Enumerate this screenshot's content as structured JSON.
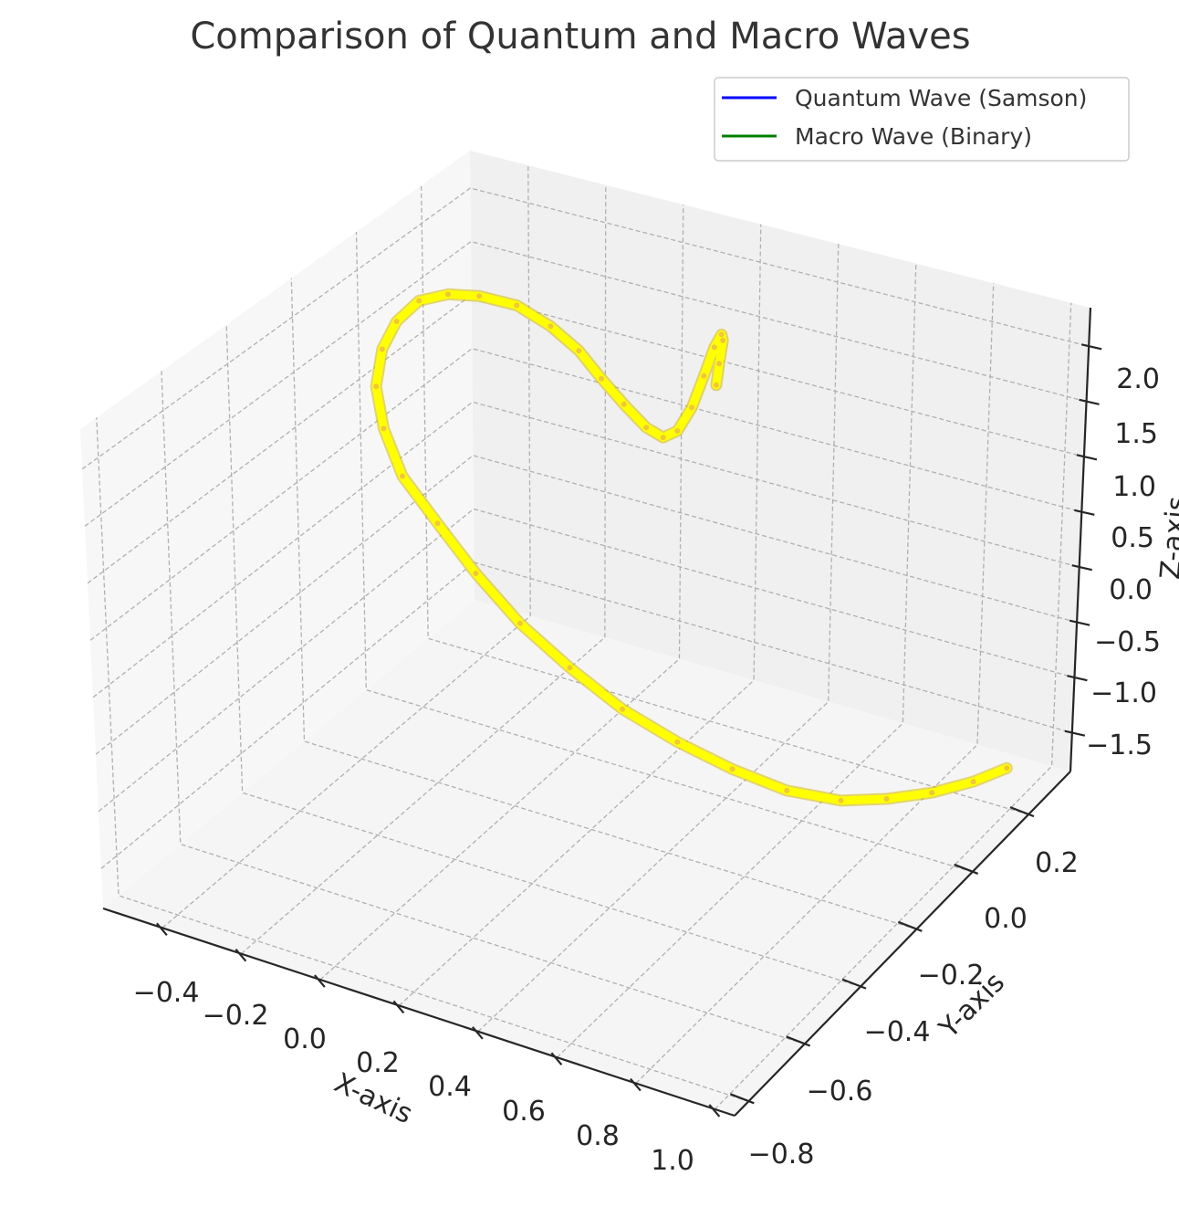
{
  "chart_data": {
    "type": "line",
    "projection": "3d",
    "title": "Comparison of Quantum and Macro Waves",
    "xlabel": "X-axis",
    "ylabel": "Y-axis",
    "zlabel": "Z-axis",
    "xlim": [
      -0.55,
      1.05
    ],
    "ylim": [
      -0.85,
      0.35
    ],
    "zlim": [
      -1.85,
      2.35
    ],
    "x_ticks": [
      "−0.4",
      "−0.2",
      "0.0",
      "0.2",
      "0.4",
      "0.6",
      "0.8",
      "1.0"
    ],
    "y_ticks": [
      "−0.8",
      "−0.6",
      "−0.4",
      "−0.2",
      "0.0",
      "0.2"
    ],
    "z_ticks": [
      "−1.5",
      "−1.0",
      "−0.5",
      "0.0",
      "0.5",
      "1.0",
      "1.5",
      "2.0"
    ],
    "grid": true,
    "legend_position": "top-right",
    "series": [
      {
        "name": "Quantum Wave (Samson)",
        "color": "#0000ff"
      },
      {
        "name": "Macro Wave (Binary)",
        "color": "#008000"
      }
    ],
    "curve_points": {
      "color": "#ffff00",
      "x": [
        1.0,
        0.95,
        0.88,
        0.8,
        0.72,
        0.62,
        0.52,
        0.42,
        0.32,
        0.22,
        0.12,
        0.02,
        -0.08,
        -0.18,
        -0.26,
        -0.32,
        -0.36,
        -0.38,
        -0.38,
        -0.35,
        -0.3,
        -0.22,
        -0.12,
        -0.02,
        0.08,
        0.18,
        0.28,
        0.36,
        0.42,
        0.46,
        0.48,
        0.48,
        0.47,
        0.45,
        0.43,
        0.42
      ],
      "y": [
        0.2,
        0.15,
        0.1,
        0.05,
        0.0,
        -0.05,
        -0.1,
        -0.15,
        -0.2,
        -0.24,
        -0.27,
        -0.28,
        -0.27,
        -0.25,
        -0.2,
        -0.14,
        -0.06,
        0.02,
        0.1,
        0.16,
        0.2,
        0.22,
        0.2,
        0.16,
        0.1,
        0.04,
        -0.02,
        -0.07,
        -0.1,
        -0.1,
        -0.08,
        -0.04,
        0.0,
        0.03,
        0.04,
        0.04
      ],
      "z": [
        -1.5,
        -1.55,
        -1.6,
        -1.62,
        -1.6,
        -1.5,
        -1.3,
        -1.05,
        -0.75,
        -0.4,
        -0.05,
        0.3,
        0.6,
        0.85,
        1.05,
        1.2,
        1.28,
        1.3,
        1.28,
        1.22,
        1.16,
        1.12,
        1.1,
        1.1,
        1.12,
        1.16,
        1.22,
        1.35,
        1.55,
        1.8,
        2.05,
        2.2,
        2.2,
        2.05,
        1.8,
        1.6
      ]
    }
  }
}
